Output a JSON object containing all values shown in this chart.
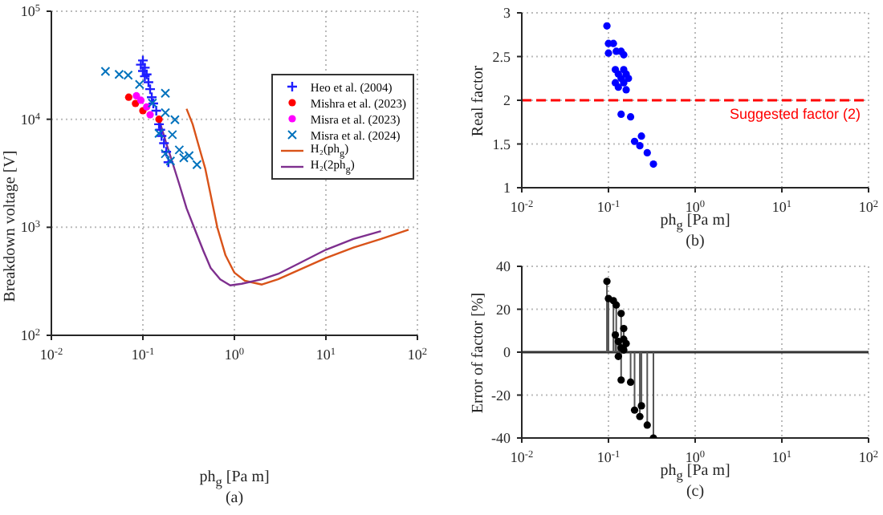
{
  "chart_data": [
    {
      "type": "scatter",
      "xlabel": "ph$_{g}$ [Pa m]",
      "ylabel": "Breakdown voltage [V]",
      "annotations": [
        "(a)"
      ],
      "log": "xy",
      "grid": true,
      "legend": "top right",
      "xlim": [
        0.01,
        100
      ],
      "ylim": [
        100,
        100000
      ],
      "xticks": [
        {
          "value": 0.01,
          "label": "10$^{-2}$"
        },
        {
          "value": 0.1,
          "label": "10$^{-1}$"
        },
        {
          "value": 1,
          "label": "10$^{0}$"
        },
        {
          "value": 10,
          "label": "10$^{1}$"
        },
        {
          "value": 100,
          "label": "10$^{2}$"
        }
      ],
      "yticks": [
        {
          "value": 100,
          "label": "10$^{2}$"
        },
        {
          "value": 1000,
          "label": "10$^{3}$"
        },
        {
          "value": 10000,
          "label": "10$^{4}$"
        },
        {
          "value": 100000,
          "label": "10$^{5}$"
        }
      ],
      "series": [
        {
          "name": "Heo et al. (2004)",
          "marker": "plus",
          "color": "#1f1fff",
          "x": [
            0.095,
            0.1,
            0.1,
            0.105,
            0.105,
            0.11,
            0.115,
            0.12,
            0.125,
            0.13,
            0.14,
            0.145,
            0.15,
            0.155,
            0.16,
            0.17,
            0.18,
            0.19
          ],
          "values": [
            32000,
            35000,
            28000,
            30000,
            25000,
            26000,
            22000,
            19000,
            16000,
            14000,
            12000,
            null,
            9000,
            8000,
            7000,
            6000,
            5000,
            4000
          ]
        },
        {
          "name": "Mishra et al. (2023)",
          "marker": "circle",
          "color": "#ff0000",
          "x": [
            0.07,
            0.083,
            0.1,
            0.15
          ],
          "values": [
            16000,
            14000,
            12000,
            10000
          ]
        },
        {
          "name": "Misra et al. (2023)",
          "marker": "circle",
          "color": "#ff00ff",
          "x": [
            0.085,
            0.095,
            0.11,
            0.12
          ],
          "values": [
            16500,
            15000,
            13000,
            11000
          ]
        },
        {
          "name": "Misra et al. (2024)",
          "marker": "cross",
          "color": "#0072bd",
          "x": [
            0.039,
            0.055,
            0.069,
            0.092,
            0.127,
            0.15,
            0.176,
            0.176,
            0.176,
            0.2,
            0.21,
            0.224,
            0.25,
            0.28,
            0.32,
            0.39
          ],
          "values": [
            27700,
            26000,
            25600,
            21000,
            14100,
            7400,
            17400,
            11500,
            4800,
            4100,
            7200,
            9900,
            5200,
            4400,
            4600,
            3800
          ]
        },
        {
          "name": "H₂(ph$_{g}$)",
          "type": "line",
          "marker": "none",
          "color": "#d95319",
          "x": [
            0.3,
            0.35,
            0.4,
            0.48,
            0.55,
            0.65,
            0.8,
            1,
            1.3,
            2,
            3,
            5,
            10,
            20,
            40,
            80
          ],
          "values": [
            12500,
            9000,
            6000,
            3500,
            2000,
            1000,
            550,
            380,
            320,
            295,
            330,
            400,
            520,
            650,
            780,
            950
          ]
        },
        {
          "name": "H₂(2ph$_{g}$)",
          "type": "line",
          "marker": "none",
          "color": "#7e2f8e",
          "x": [
            0.15,
            0.18,
            0.21,
            0.25,
            0.3,
            0.38,
            0.46,
            0.55,
            0.7,
            0.9,
            1.2,
            2,
            3,
            5,
            10,
            20,
            40
          ],
          "values": [
            10000,
            6000,
            4000,
            2500,
            1500,
            900,
            600,
            420,
            330,
            290,
            300,
            330,
            370,
            460,
            620,
            780,
            920
          ]
        }
      ]
    },
    {
      "type": "scatter",
      "xlabel": "ph$_{g}$ [Pa m]",
      "ylabel": "Real factor",
      "annotations": [
        "(b)"
      ],
      "log": "x",
      "grid": true,
      "marker": "circle",
      "xlim": [
        0.01,
        100
      ],
      "ylim": [
        1,
        3
      ],
      "xticks": [
        {
          "value": 0.01,
          "label": "10$^{-2}$"
        },
        {
          "value": 0.1,
          "label": "10$^{-1}$"
        },
        {
          "value": 1,
          "label": "10$^{0}$"
        },
        {
          "value": 10,
          "label": "10$^{1}$"
        },
        {
          "value": 100,
          "label": "10$^{2}$"
        }
      ],
      "yticks": [
        1,
        1.5,
        2,
        2.5,
        3
      ],
      "ref_lines": [
        {
          "axis": "y",
          "value": 2,
          "label": "Suggested factor (2)",
          "color": "#ff0000",
          "line_style": "dashed"
        }
      ],
      "series": [
        {
          "color": "#0000ff",
          "x": [
            0.096,
            0.1,
            0.1,
            0.114,
            0.123,
            0.14,
            0.15,
            0.12,
            0.13,
            0.14,
            0.15,
            0.16,
            0.17,
            0.13,
            0.15,
            0.16,
            0.12,
            0.14,
            0.18,
            0.24,
            0.2,
            0.23,
            0.28,
            0.33
          ],
          "values": [
            2.85,
            2.65,
            2.54,
            2.65,
            2.56,
            2.56,
            2.52,
            2.35,
            2.3,
            2.25,
            2.35,
            2.3,
            2.25,
            2.15,
            2.2,
            2.12,
            2.2,
            1.84,
            1.81,
            1.59,
            1.53,
            1.48,
            1.4,
            1.27
          ]
        }
      ]
    },
    {
      "type": "lollipop",
      "xlabel": "ph$_{g}$ [Pa m]",
      "ylabel": "Error of factor [%]",
      "annotations": [
        "(c)"
      ],
      "log": "x",
      "grid": true,
      "marker": "circle",
      "xlim": [
        0.01,
        100
      ],
      "ylim": [
        -40,
        40
      ],
      "xticks": [
        {
          "value": 0.01,
          "label": "10$^{-2}$"
        },
        {
          "value": 0.1,
          "label": "10$^{-1}$"
        },
        {
          "value": 1,
          "label": "10$^{0}$"
        },
        {
          "value": 10,
          "label": "10$^{1}$"
        },
        {
          "value": 100,
          "label": "10$^{2}$"
        }
      ],
      "yticks": [
        -40,
        -20,
        0,
        20,
        40
      ],
      "ref_lines": [
        {
          "axis": "y",
          "value": 0,
          "color": "#333333",
          "line_style": "solid"
        }
      ],
      "series": [
        {
          "color": "#000000",
          "x": [
            0.096,
            0.1,
            0.114,
            0.123,
            0.14,
            0.15,
            0.12,
            0.13,
            0.14,
            0.15,
            0.16,
            0.13,
            0.15,
            0.14,
            0.18,
            0.2,
            0.24,
            0.23,
            0.28,
            0.33
          ],
          "values": [
            33,
            25,
            24,
            22,
            18,
            11,
            8,
            5,
            2,
            6,
            4,
            -2,
            1,
            -13,
            -14,
            -27,
            -25,
            -30,
            -34,
            -40
          ]
        }
      ]
    }
  ]
}
